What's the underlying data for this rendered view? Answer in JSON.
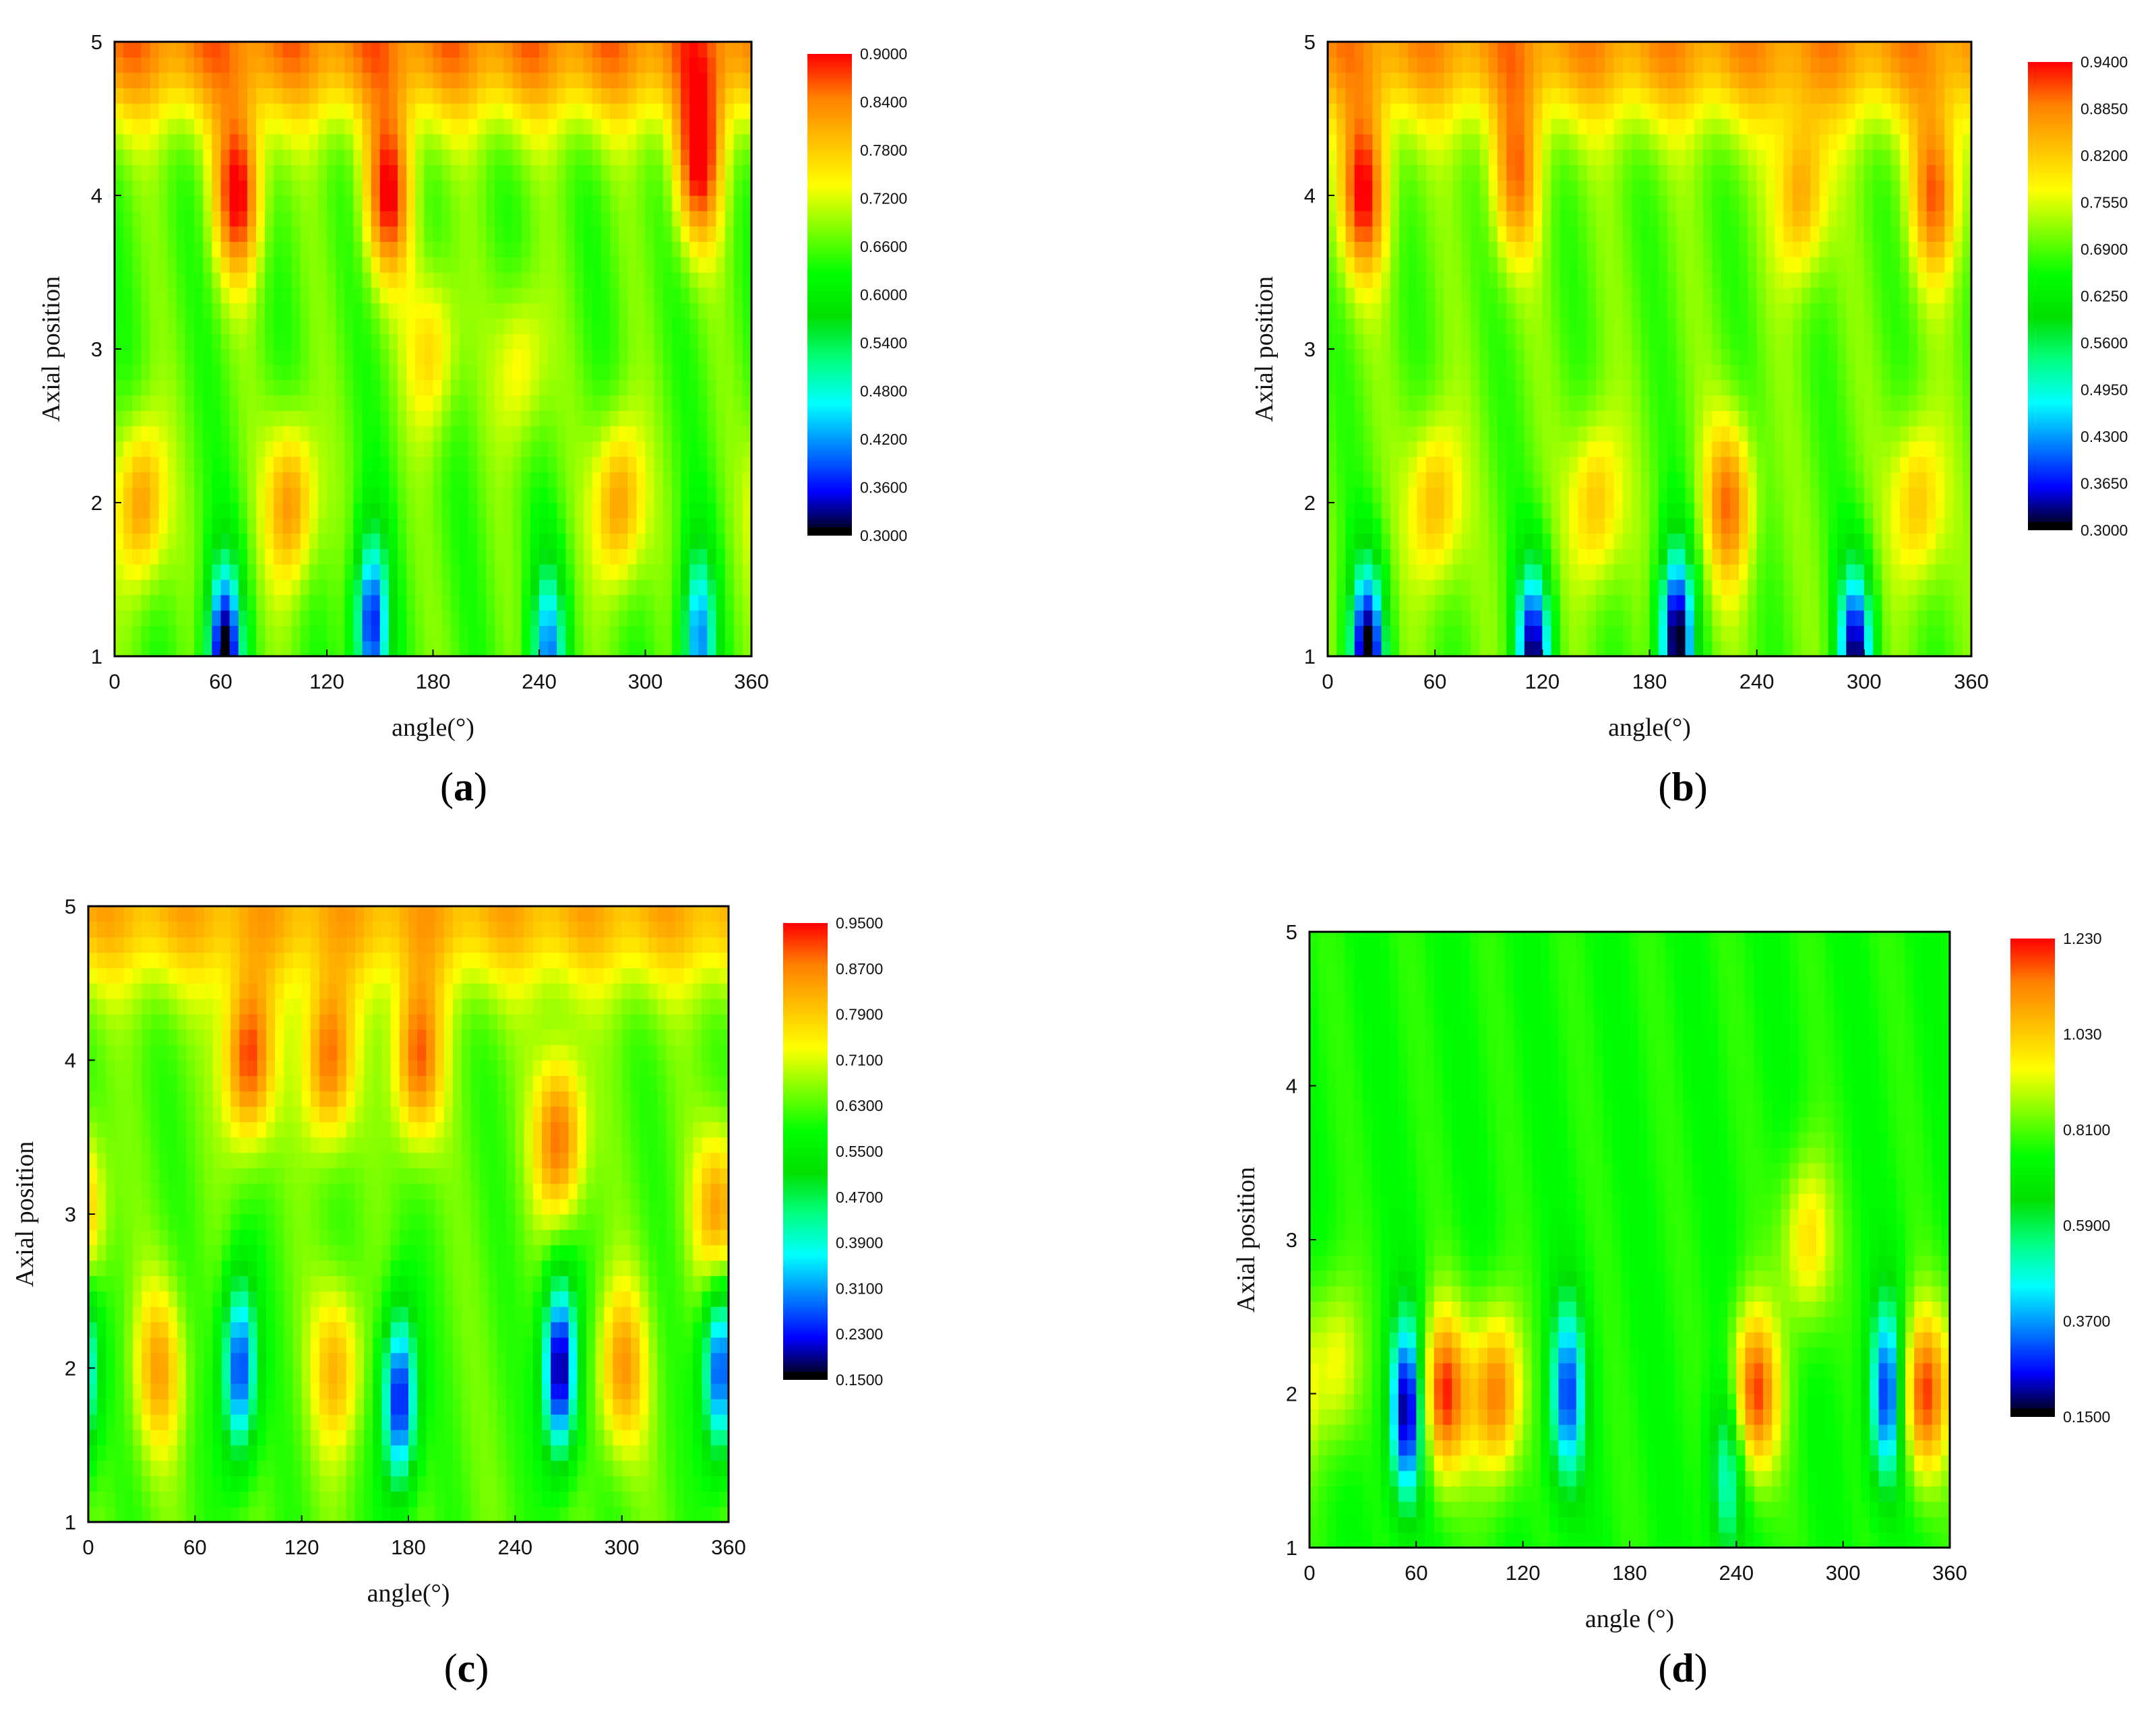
{
  "figure": {
    "panels": [
      "a",
      "b",
      "c",
      "d"
    ]
  },
  "colormap": [
    "#000000",
    "#0000ff",
    "#0080ff",
    "#00ffff",
    "#00ff80",
    "#00e000",
    "#00ff00",
    "#80ff00",
    "#ffff00",
    "#ffc000",
    "#ff8000",
    "#ff0000"
  ],
  "chart_data": [
    {
      "id": "a",
      "caption": "a",
      "type": "heatmap",
      "xlabel": "angle(°)",
      "ylabel": "Axial position",
      "xlim": [
        0,
        360
      ],
      "ylim": [
        1,
        5
      ],
      "xticks": [
        "0",
        "60",
        "120",
        "180",
        "240",
        "300",
        "360"
      ],
      "yticks": [
        "1",
        "2",
        "3",
        "4",
        "5"
      ],
      "colorbar": {
        "min": 0.3,
        "max": 0.9,
        "labels": [
          "0.9000",
          "0.8400",
          "0.7800",
          "0.7200",
          "0.6600",
          "0.6000",
          "0.5400",
          "0.4800",
          "0.4200",
          "0.3600",
          "0.3000"
        ]
      },
      "field": {
        "base": 0.66,
        "top_value": 0.84,
        "hot_peaks": [
          {
            "angle": 15,
            "axial": 2.0,
            "value": 0.84
          },
          {
            "angle": 70,
            "axial": 4.0,
            "value": 0.89
          },
          {
            "angle": 100,
            "axial": 2.0,
            "value": 0.84
          },
          {
            "angle": 155,
            "axial": 4.0,
            "value": 0.88
          },
          {
            "angle": 180,
            "axial": 3.0,
            "value": 0.78
          },
          {
            "angle": 230,
            "axial": 2.9,
            "value": 0.76
          },
          {
            "angle": 285,
            "axial": 2.0,
            "value": 0.84
          },
          {
            "angle": 330,
            "axial": 4.2,
            "value": 0.88
          }
        ],
        "cold_troughs": [
          {
            "angle": 62,
            "axial": 1.0,
            "value": 0.3
          },
          {
            "angle": 145,
            "axial": 1.2,
            "value": 0.36
          },
          {
            "angle": 245,
            "axial": 1.0,
            "value": 0.42
          },
          {
            "angle": 330,
            "axial": 1.1,
            "value": 0.42
          }
        ]
      }
    },
    {
      "id": "b",
      "caption": "b",
      "type": "heatmap",
      "xlabel": "angle(°)",
      "ylabel": "Axial position",
      "xlim": [
        0,
        360
      ],
      "ylim": [
        1,
        5
      ],
      "xticks": [
        "0",
        "60",
        "120",
        "180",
        "240",
        "300",
        "360"
      ],
      "yticks": [
        "1",
        "2",
        "3",
        "4",
        "5"
      ],
      "colorbar": {
        "min": 0.3,
        "max": 0.94,
        "labels": [
          "0.9400",
          "0.8850",
          "0.8200",
          "0.7550",
          "0.6900",
          "0.6250",
          "0.5600",
          "0.4950",
          "0.4300",
          "0.3650",
          "0.3000"
        ]
      },
      "field": {
        "base": 0.69,
        "top_value": 0.86,
        "hot_peaks": [
          {
            "angle": 20,
            "axial": 4.0,
            "value": 0.92
          },
          {
            "angle": 60,
            "axial": 2.0,
            "value": 0.85
          },
          {
            "angle": 105,
            "axial": 4.1,
            "value": 0.86
          },
          {
            "angle": 150,
            "axial": 2.0,
            "value": 0.84
          },
          {
            "angle": 225,
            "axial": 2.0,
            "value": 0.88
          },
          {
            "angle": 265,
            "axial": 4.0,
            "value": 0.86
          },
          {
            "angle": 330,
            "axial": 2.0,
            "value": 0.84
          },
          {
            "angle": 340,
            "axial": 4.0,
            "value": 0.88
          }
        ],
        "cold_troughs": [
          {
            "angle": 22,
            "axial": 1.0,
            "value": 0.3
          },
          {
            "angle": 115,
            "axial": 1.0,
            "value": 0.33
          },
          {
            "angle": 195,
            "axial": 1.1,
            "value": 0.3
          },
          {
            "angle": 295,
            "axial": 1.0,
            "value": 0.33
          }
        ]
      }
    },
    {
      "id": "c",
      "caption": "c",
      "type": "heatmap",
      "xlabel": "angle(°)",
      "ylabel": "Axial position",
      "xlim": [
        0,
        360
      ],
      "ylim": [
        1,
        5
      ],
      "xticks": [
        "0",
        "60",
        "120",
        "180",
        "240",
        "300",
        "360"
      ],
      "yticks": [
        "1",
        "2",
        "3",
        "4",
        "5"
      ],
      "colorbar": {
        "min": 0.15,
        "max": 0.95,
        "labels": [
          "0.9500",
          "0.8700",
          "0.7900",
          "0.7100",
          "0.6300",
          "0.5500",
          "0.4700",
          "0.3900",
          "0.3100",
          "0.2300",
          "0.1500"
        ]
      },
      "field": {
        "base": 0.63,
        "top_value": 0.82,
        "hot_peaks": [
          {
            "angle": 40,
            "axial": 2.0,
            "value": 0.82
          },
          {
            "angle": 90,
            "axial": 4.0,
            "value": 0.93
          },
          {
            "angle": 135,
            "axial": 4.0,
            "value": 0.9
          },
          {
            "angle": 140,
            "axial": 2.0,
            "value": 0.82
          },
          {
            "angle": 185,
            "axial": 4.0,
            "value": 0.9
          },
          {
            "angle": 265,
            "axial": 3.5,
            "value": 0.9
          },
          {
            "angle": 300,
            "axial": 2.0,
            "value": 0.84
          },
          {
            "angle": 355,
            "axial": 3.0,
            "value": 0.86
          }
        ],
        "cold_troughs": [
          {
            "angle": 85,
            "axial": 2.0,
            "value": 0.23
          },
          {
            "angle": 175,
            "axial": 1.8,
            "value": 0.2
          },
          {
            "angle": 265,
            "axial": 2.0,
            "value": 0.15
          },
          {
            "angle": 355,
            "axial": 2.0,
            "value": 0.23
          }
        ]
      }
    },
    {
      "id": "d",
      "caption": "d",
      "type": "heatmap",
      "xlabel": "angle (°)",
      "ylabel": "Axial position",
      "xlim": [
        0,
        360
      ],
      "ylim": [
        1,
        5
      ],
      "xticks": [
        "0",
        "60",
        "120",
        "180",
        "240",
        "300",
        "360"
      ],
      "yticks": [
        "1",
        "2",
        "3",
        "4",
        "5"
      ],
      "colorbar": {
        "min": 0.15,
        "max": 1.23,
        "labels": [
          "1.230",
          "1.030",
          "0.8100",
          "0.5900",
          "0.3700",
          "0.1500"
        ]
      },
      "field": {
        "base": 0.75,
        "top_value": 0.75,
        "hot_peaks": [
          {
            "angle": 75,
            "axial": 2.0,
            "value": 1.2
          },
          {
            "angle": 105,
            "axial": 2.0,
            "value": 1.15
          },
          {
            "angle": 250,
            "axial": 2.0,
            "value": 1.2
          },
          {
            "angle": 280,
            "axial": 3.0,
            "value": 1.0
          },
          {
            "angle": 345,
            "axial": 2.0,
            "value": 1.18
          },
          {
            "angle": 15,
            "axial": 2.2,
            "value": 0.95
          }
        ],
        "cold_troughs": [
          {
            "angle": 55,
            "axial": 1.9,
            "value": 0.15
          },
          {
            "angle": 145,
            "axial": 2.0,
            "value": 0.3
          },
          {
            "angle": 235,
            "axial": 1.5,
            "value": 0.45
          },
          {
            "angle": 325,
            "axial": 2.0,
            "value": 0.25
          }
        ]
      }
    }
  ]
}
